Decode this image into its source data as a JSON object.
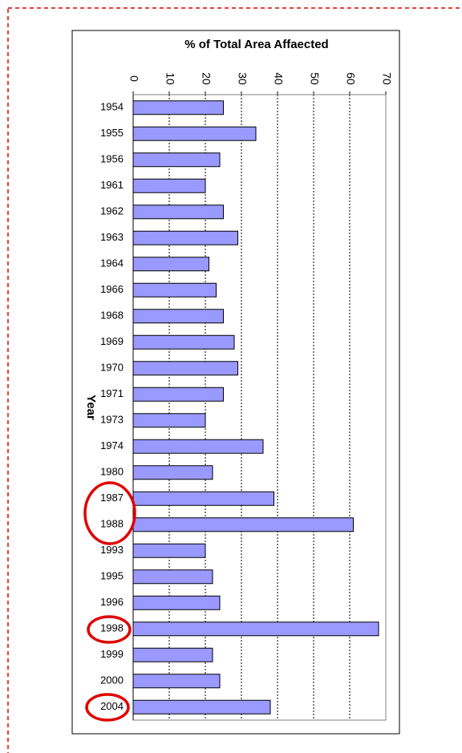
{
  "chart_data": {
    "type": "bar",
    "orientation": "horizontal",
    "title": "% of Total Area Affaected",
    "y_label": "Year",
    "categories": [
      "1954",
      "1955",
      "1956",
      "1961",
      "1962",
      "1963",
      "1964",
      "1966",
      "1968",
      "1969",
      "1970",
      "1971",
      "1973",
      "1974",
      "1980",
      "1987",
      "1988",
      "1993",
      "1995",
      "1996",
      "1998",
      "1999",
      "2000",
      "2004"
    ],
    "values": [
      25,
      34,
      24,
      20,
      25,
      29,
      21,
      23,
      25,
      28,
      29,
      25,
      20,
      36,
      22,
      39,
      61,
      20,
      22,
      24,
      68,
      22,
      24,
      38
    ],
    "color": "#9999ff",
    "xlim": [
      0,
      70
    ],
    "xticks": [
      0,
      10,
      20,
      30,
      40,
      50,
      60,
      70
    ],
    "grid": true
  }
}
